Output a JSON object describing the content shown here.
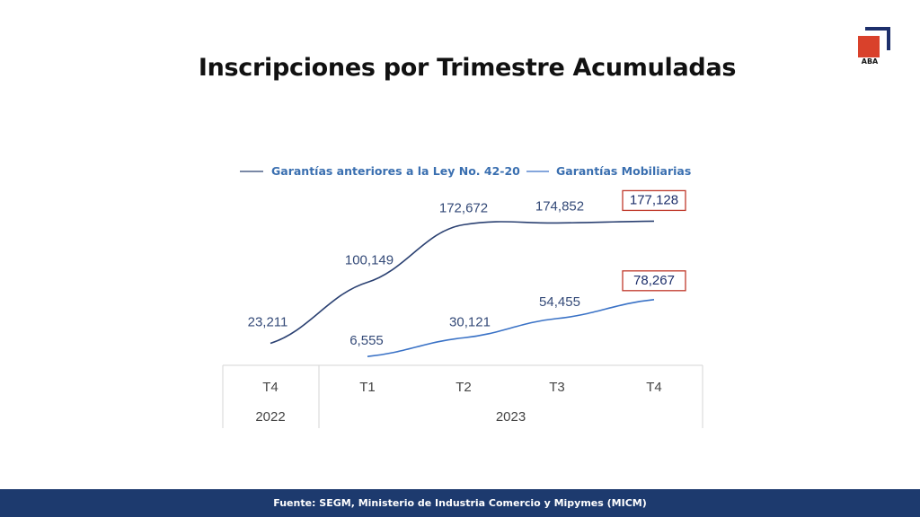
{
  "title": "Inscripciones por Trimestre Acumuladas",
  "logo": {
    "text": "ABA",
    "colors": {
      "square": "#d9412b",
      "corner": "#1d2f6b"
    }
  },
  "footer": "Fuente: SEGM, Ministerio de Industria Comercio y Mipymes (MICM)",
  "chart_data": {
    "type": "line",
    "title": "",
    "xlabel": "",
    "ylabel": "",
    "categories": [
      "T4",
      "T1",
      "T2",
      "T3",
      "T4"
    ],
    "years": [
      {
        "label": "2022",
        "span": [
          0,
          0
        ]
      },
      {
        "label": "2023",
        "span": [
          1,
          4
        ]
      }
    ],
    "ylim": [
      0,
      200000
    ],
    "grid": false,
    "legend_position": "top",
    "series": [
      {
        "name": "Garantías anteriores a la Ley No. 42-20",
        "color": "#2b4172",
        "values": [
          23211,
          100149,
          172672,
          174852,
          177128
        ],
        "labels": [
          "23,211",
          "100,149",
          "172,672",
          "174,852",
          "177,128"
        ]
      },
      {
        "name": "Garantías Mobiliarias",
        "color": "#3a72c6",
        "values": [
          null,
          6555,
          30121,
          54455,
          78267
        ],
        "labels": [
          "",
          "6,555",
          "30,121",
          "54,455",
          "78,267"
        ]
      }
    ],
    "highlighted_labels": [
      "177,128",
      "78,267"
    ],
    "highlight_color": "#c0392b"
  }
}
